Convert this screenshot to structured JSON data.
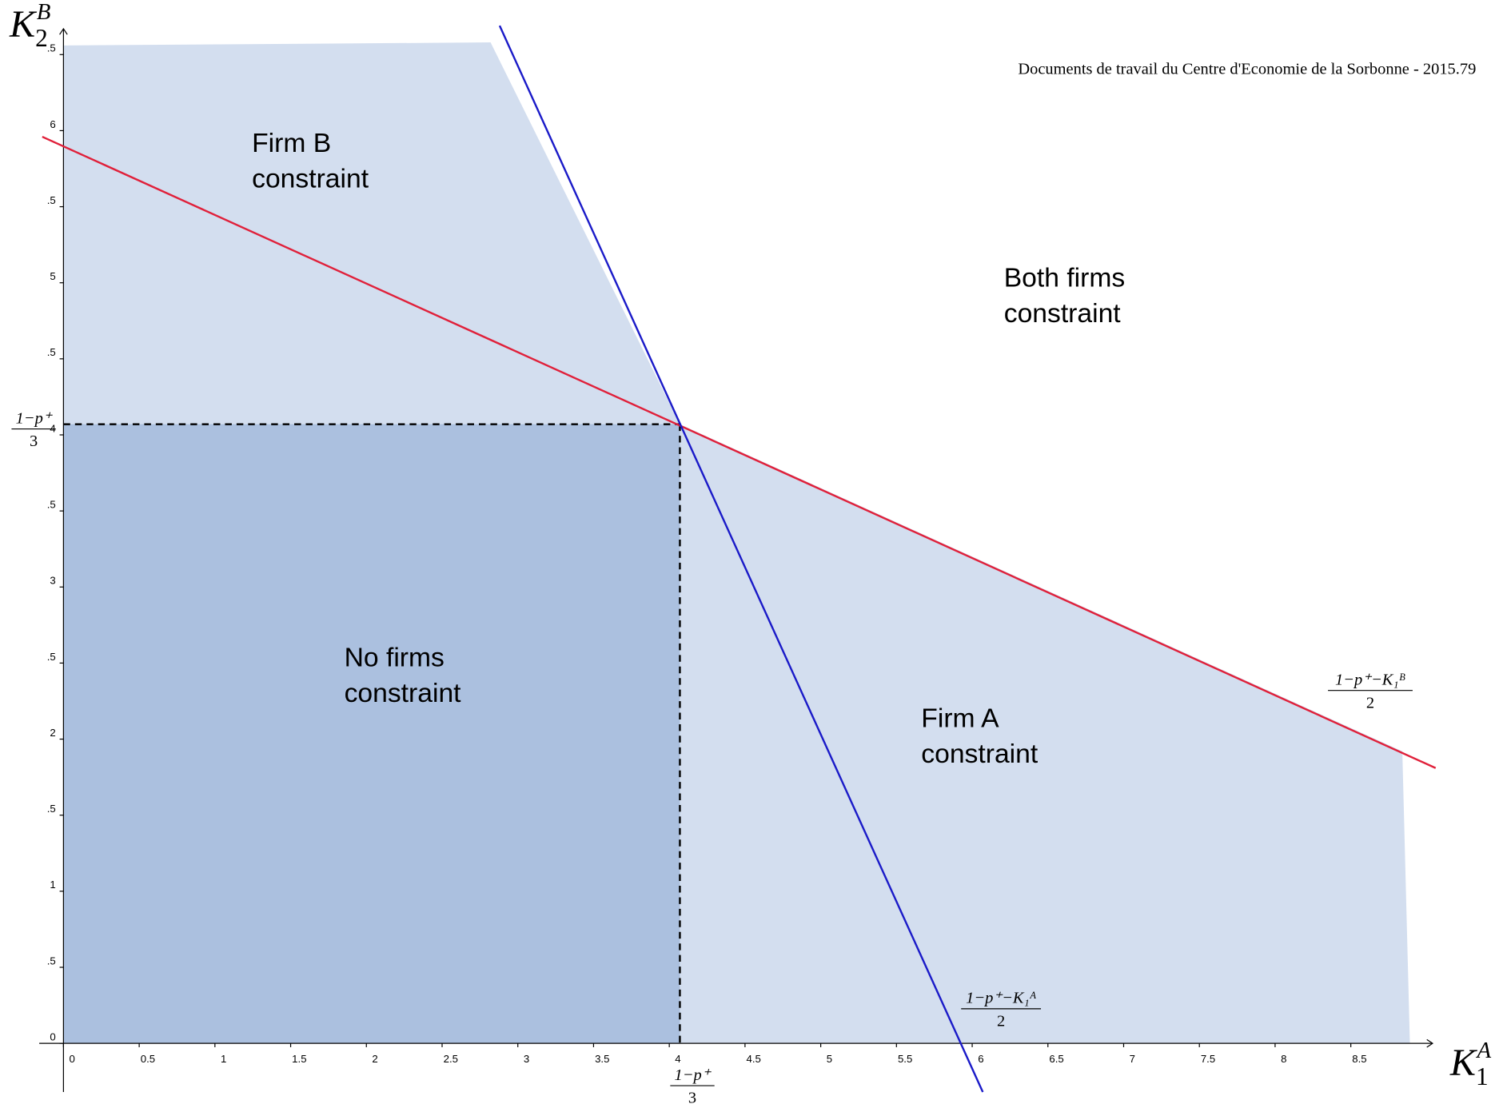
{
  "chart_data": {
    "type": "line",
    "header": "Documents de travail du Centre d'Economie de la Sorbonne - 2015.79",
    "x_label": {
      "base": "K",
      "sub": "1",
      "sup": "A"
    },
    "y_label": {
      "base": "K",
      "sub": "2",
      "sup": "B"
    },
    "xlim": [
      -0.16,
      9.04
    ],
    "ylim": [
      -0.32,
      6.67
    ],
    "xticks": [
      0,
      0.5,
      1,
      1.5,
      2,
      2.5,
      3,
      3.5,
      4,
      4.5,
      5,
      5.5,
      6,
      6.5,
      7,
      7.5,
      8,
      8.5
    ],
    "yticks": [
      0,
      {
        "value": 0.5,
        "label": ".5"
      },
      1,
      {
        "value": 1.5,
        "label": ".5"
      },
      2,
      {
        "value": 2.5,
        "label": ".5"
      },
      3,
      {
        "value": 3.5,
        "label": ".5"
      },
      4,
      {
        "value": 4.5,
        "label": ".5"
      },
      5,
      {
        "value": 5.5,
        "label": ".5"
      },
      6,
      {
        "value": 6.5,
        "label": ".5"
      }
    ],
    "series": [
      {
        "color": "#e0203a",
        "x": [
          -0.14,
          9.06
        ],
        "values": [
          5.96,
          1.81
        ]
      },
      {
        "color": "#1a1ac8",
        "x": [
          2.88,
          6.07
        ],
        "values": [
          6.69,
          -0.32
        ]
      }
    ],
    "shaded_region": {
      "color": "#d3deef",
      "x": [
        0,
        2.82,
        4.07,
        8.84,
        8.89,
        0
      ],
      "values": [
        6.56,
        6.58,
        4.07,
        1.92,
        0,
        0
      ]
    },
    "inner_region": {
      "color": "#abc0df",
      "x": 4.07,
      "y": 4.07
    },
    "region_labels": [
      [
        "Firm B",
        "constraint"
      ],
      [
        "Both firms",
        "constraint"
      ],
      [
        "No firms",
        "constraint"
      ],
      [
        "Firm A",
        "constraint"
      ]
    ],
    "fractions": {
      "y_intersection": {
        "numerator": "1−p⁺",
        "denominator": "3"
      },
      "x_intersection": {
        "numerator": "1−p⁺",
        "denominator": "3"
      },
      "red_line": {
        "numerator": "1−p⁺−K₁ᴮ",
        "denominator": "2"
      },
      "blue_line": {
        "numerator": "1−p⁺−K₁ᴬ",
        "denominator": "2"
      }
    }
  }
}
